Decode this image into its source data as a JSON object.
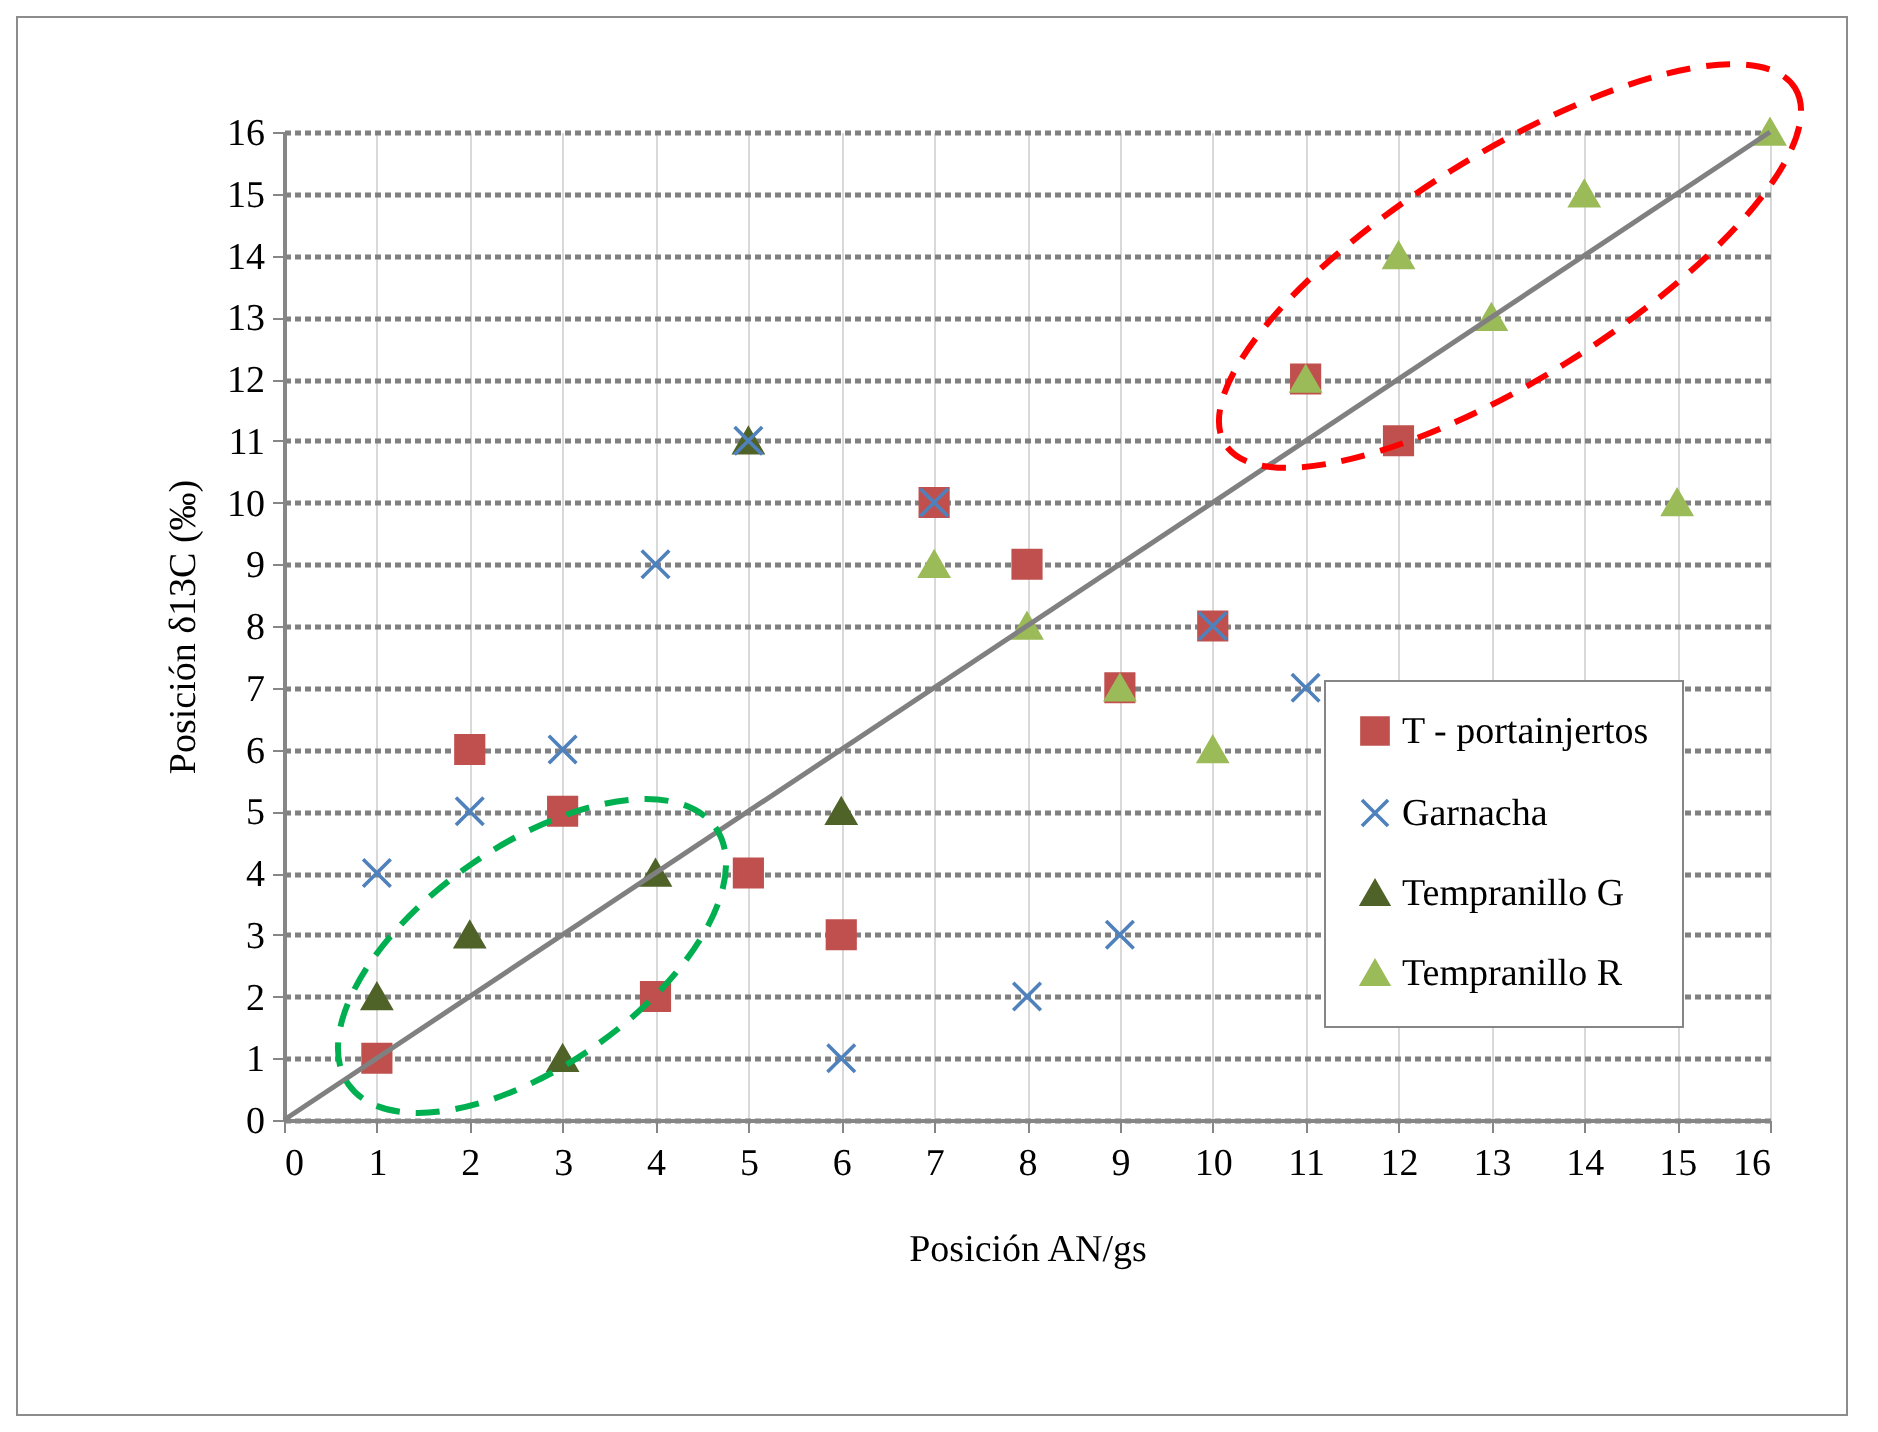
{
  "chart_data": {
    "type": "scatter",
    "xlabel": "Posición AN/gs",
    "ylabel": "Posición δ13C (‰)",
    "xlim": [
      0,
      16
    ],
    "ylim": [
      0,
      16
    ],
    "xticks": [
      0,
      1,
      2,
      3,
      4,
      5,
      6,
      7,
      8,
      9,
      10,
      11,
      12,
      13,
      14,
      15,
      16
    ],
    "yticks": [
      0,
      1,
      2,
      3,
      4,
      5,
      6,
      7,
      8,
      9,
      10,
      11,
      12,
      13,
      14,
      15,
      16
    ],
    "grid": true,
    "legend": "bottom right",
    "series": [
      {
        "name": "T - portainjertos",
        "color": "#c0504d",
        "marker": "square",
        "x": [
          1,
          2,
          3,
          4,
          5,
          6,
          7,
          8,
          9,
          10,
          11,
          12
        ],
        "values": [
          1,
          6,
          5,
          2,
          4,
          3,
          10,
          9,
          7,
          8,
          12,
          11
        ]
      },
      {
        "name": "Garnacha",
        "color": "#4f81bd",
        "marker": "cross",
        "x": [
          1,
          2,
          3,
          4,
          5,
          6,
          7,
          8,
          9,
          10,
          11
        ],
        "values": [
          4,
          5,
          6,
          9,
          11,
          1,
          10,
          2,
          3,
          8,
          7
        ]
      },
      {
        "name": "Tempranillo G",
        "color": "#4f6228",
        "marker": "triangle",
        "x": [
          1,
          2,
          3,
          4,
          5,
          6
        ],
        "values": [
          2,
          3,
          1,
          4,
          11,
          5
        ]
      },
      {
        "name": "Tempranillo R",
        "color": "#9bbb59",
        "marker": "triangle",
        "x": [
          7,
          8,
          9,
          10,
          11,
          12,
          13,
          14,
          15,
          16
        ],
        "values": [
          9,
          8,
          7,
          6,
          12,
          14,
          13,
          15,
          10,
          16
        ]
      },
      {
        "type": "line",
        "color": "#808080",
        "x": [
          0,
          16
        ],
        "values": [
          0,
          16
        ]
      }
    ]
  }
}
